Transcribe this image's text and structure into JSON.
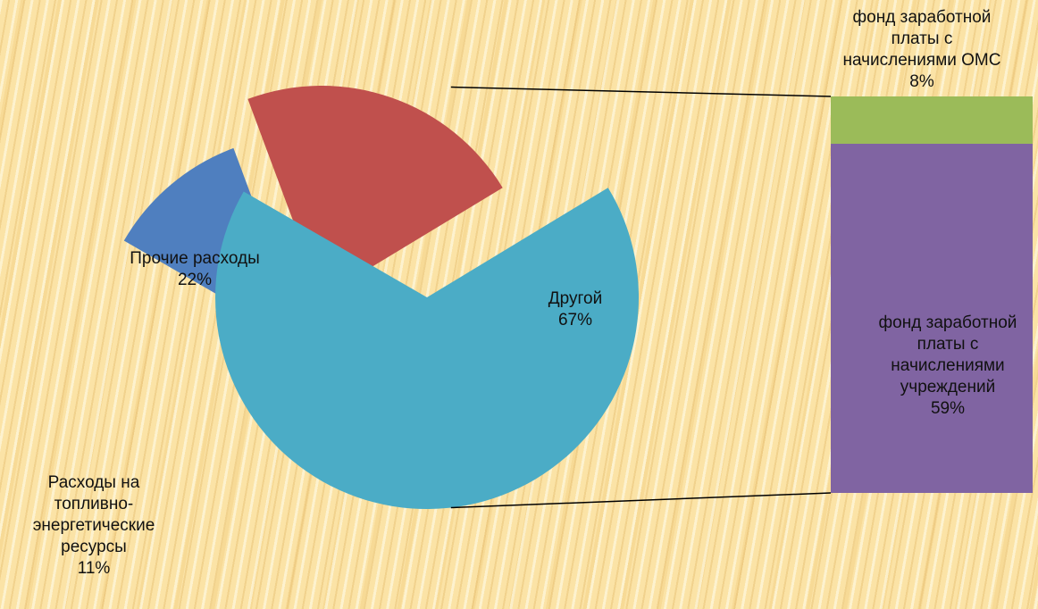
{
  "chart_data": {
    "type": "bar-of-pie",
    "pie": [
      {
        "label": "Расходы на топливно-энергетические ресурсы",
        "value": 11,
        "display": "11%",
        "color": "#4f7fbf",
        "label_lines": [
          "Расходы на",
          "топливно-",
          "энергетические",
          "ресурсы",
          "11%"
        ]
      },
      {
        "label": "Прочие расходы",
        "value": 22,
        "display": "22%",
        "color": "#c0504d",
        "label_lines": [
          "Прочие расходы",
          "22%"
        ]
      },
      {
        "label": "Другой",
        "value": 67,
        "display": "67%",
        "color": "#4bacc6",
        "label_lines": [
          "Другой",
          "67%"
        ]
      }
    ],
    "bar": [
      {
        "label": "фонд заработной платы с начислениями учреждений",
        "value": 59,
        "display": "59%",
        "color": "#8064a2",
        "label_lines": [
          "фонд заработной",
          "платы с",
          "начислениями",
          "учреждений",
          "59%"
        ]
      },
      {
        "label": "фонд заработной платы с начислениями ОМС",
        "value": 8,
        "display": "8%",
        "color": "#9bbb59",
        "label_lines": [
          "фонд заработной",
          "платы с",
          "начислениями ОМС",
          "8%"
        ]
      }
    ],
    "connector_color": "#000000"
  }
}
